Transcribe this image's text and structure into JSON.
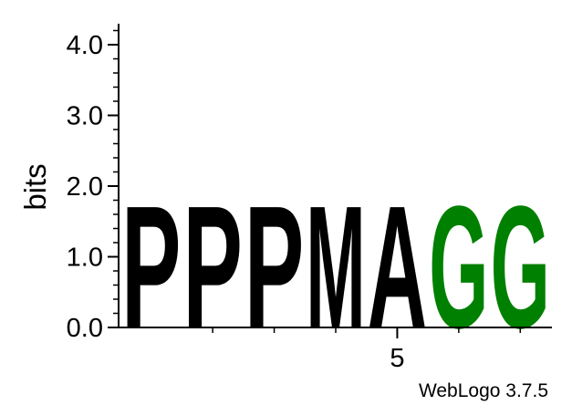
{
  "chart_data": {
    "type": "sequence-logo",
    "ylabel": "bits",
    "ylim": [
      0,
      4.32
    ],
    "y_ticks": [
      {
        "value": 0.0,
        "label": "0.0"
      },
      {
        "value": 1.0,
        "label": "1.0"
      },
      {
        "value": 2.0,
        "label": "2.0"
      },
      {
        "value": 3.0,
        "label": "3.0"
      },
      {
        "value": 4.0,
        "label": "4.0"
      }
    ],
    "y_minor_step": 0.2,
    "positions": [
      1,
      2,
      3,
      4,
      5,
      6,
      7
    ],
    "x_tick_labels": [
      {
        "position": 5,
        "label": "5"
      }
    ],
    "x_minor_ticks": [
      2,
      3,
      4,
      6,
      7
    ],
    "stacks": [
      {
        "position": 1,
        "letter": "P",
        "height": 1.78
      },
      {
        "position": 2,
        "letter": "P",
        "height": 1.78
      },
      {
        "position": 3,
        "letter": "P",
        "height": 1.78
      },
      {
        "position": 4,
        "letter": "M",
        "height": 1.78
      },
      {
        "position": 5,
        "letter": "A",
        "height": 1.78
      },
      {
        "position": 6,
        "letter": "G",
        "height": 1.78
      },
      {
        "position": 7,
        "letter": "G",
        "height": 1.78
      }
    ],
    "colors": {
      "P": "#000000",
      "M": "#000000",
      "A": "#000000",
      "G": "#008000"
    },
    "footer": "WebLogo 3.7.5"
  }
}
